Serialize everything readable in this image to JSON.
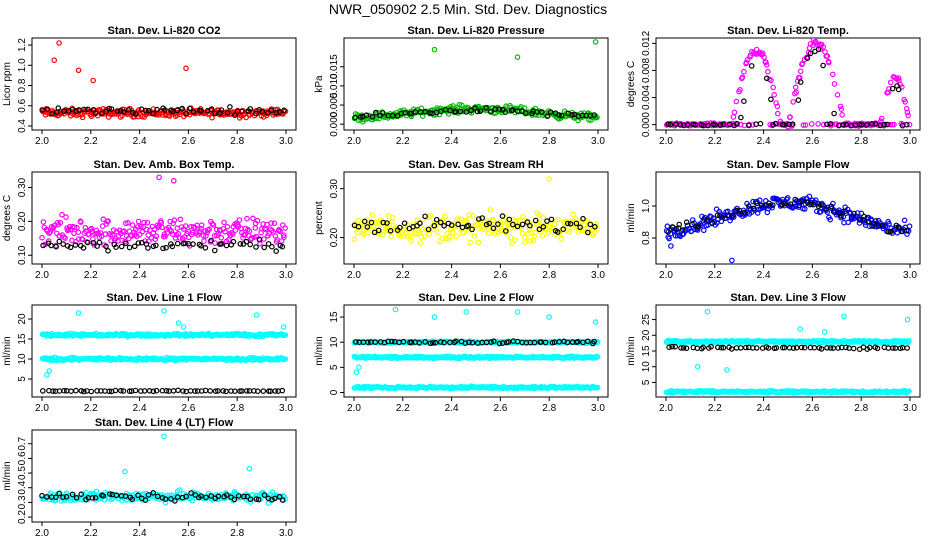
{
  "title": "NWR_050902  2.5 Min. Std. Dev. Diagnostics",
  "colors": {
    "co2": "#ff0000",
    "pressure": "#00bb00",
    "temp": "#ff00ff",
    "rh": "#ffff00",
    "sample": "#0000ff",
    "line": "#00ffff",
    "average": "#000000"
  },
  "chart_data": [
    {
      "id": "co2",
      "type": "scatter",
      "title": "Stan. Dev. Li-820 CO2",
      "ylabel": "Licor ppm",
      "xlim": [
        2.0,
        3.0
      ],
      "xticks": [
        "2.0",
        "2.2",
        "2.4",
        "2.6",
        "2.8",
        "3.0"
      ],
      "ylim": [
        0.38,
        1.25
      ],
      "yticks": [
        "0.4",
        "0.6",
        "0.8",
        "1.0",
        "1.2"
      ],
      "color": "co2",
      "series": [
        {
          "name": "samples",
          "color": "co2",
          "levels": [
            0.53
          ],
          "spread": 0.06,
          "outliers": [
            [
              2.07,
              1.22
            ],
            [
              2.05,
              1.05
            ],
            [
              2.15,
              0.95
            ],
            [
              2.59,
              0.97
            ],
            [
              2.21,
              0.85
            ]
          ]
        },
        {
          "name": "averages",
          "color": "average",
          "levels": [
            0.55
          ],
          "spread": 0.05,
          "outliers": []
        }
      ]
    },
    {
      "id": "pressure",
      "type": "scatter",
      "title": "Stan. Dev. Li-820 Pressure",
      "ylabel": "kPa",
      "xlim": [
        2.0,
        3.0
      ],
      "xticks": [
        "2.0",
        "2.2",
        "2.4",
        "2.6",
        "2.8",
        "3.0"
      ],
      "ylim": [
        -0.001,
        0.022
      ],
      "yticks": [
        "0.000",
        "0.005",
        "0.010",
        "0.015"
      ],
      "color": "pressure",
      "series": [
        {
          "name": "samples",
          "color": "pressure",
          "levels": [
            0.0025
          ],
          "spread": 0.0015,
          "wave": 0.0015,
          "outliers": [
            [
              2.33,
              0.0195
            ],
            [
              2.67,
              0.0175
            ],
            [
              2.99,
              0.0215
            ]
          ]
        },
        {
          "name": "averages",
          "color": "average",
          "levels": [
            0.0025
          ],
          "spread": 0.001,
          "wave": 0.0012,
          "outliers": []
        }
      ]
    },
    {
      "id": "licor-temp",
      "type": "scatter",
      "title": "Stan. Dev. Li-820 Temp.",
      "ylabel": "degrees C",
      "xlim": [
        2.0,
        3.0
      ],
      "xticks": [
        "2.0",
        "2.2",
        "2.4",
        "2.6",
        "2.8",
        "3.0"
      ],
      "ylim": [
        -0.0005,
        0.0125
      ],
      "yticks": [
        "0.000",
        "0.004",
        "0.008",
        "0.012"
      ],
      "color": "temp",
      "series": [
        {
          "name": "samples",
          "color": "temp",
          "levels": [
            0.0
          ],
          "spread": 0.0003,
          "arches": [
            [
              2.27,
              2.47,
              0.011
            ],
            [
              2.5,
              2.73,
              0.012
            ],
            [
              2.88,
              3.0,
              0.007
            ]
          ],
          "outliers": []
        },
        {
          "name": "averages",
          "color": "average",
          "levels": [
            0.0
          ],
          "spread": 0.0002,
          "arches": [
            [
              2.3,
              2.45,
              0.01
            ],
            [
              2.52,
              2.7,
              0.011
            ],
            [
              2.9,
              2.98,
              0.006
            ]
          ],
          "outliers": []
        }
      ]
    },
    {
      "id": "amb-box-temp",
      "type": "scatter",
      "title": "Stan. Dev. Amb. Box Temp.",
      "ylabel": "degrees C",
      "xlim": [
        2.0,
        3.0
      ],
      "xticks": [
        "2.0",
        "2.2",
        "2.4",
        "2.6",
        "2.8",
        "3.0"
      ],
      "ylim": [
        0.08,
        0.34
      ],
      "yticks": [
        "0.10",
        "0.20",
        "0.30"
      ],
      "color": "temp",
      "series": [
        {
          "name": "samples",
          "color": "temp",
          "levels": [
            0.17
          ],
          "spread": 0.06,
          "outliers": [
            [
              2.48,
              0.33
            ],
            [
              2.54,
              0.32
            ]
          ]
        },
        {
          "name": "averages",
          "color": "average",
          "levels": [
            0.13
          ],
          "spread": 0.02,
          "outliers": []
        }
      ]
    },
    {
      "id": "gas-rh",
      "type": "scatter",
      "title": "Stan. Dev. Gas Stream RH",
      "ylabel": "percent",
      "xlim": [
        2.0,
        3.0
      ],
      "xticks": [
        "2.0",
        "2.2",
        "2.4",
        "2.6",
        "2.8",
        "3.0"
      ],
      "ylim": [
        0.15,
        0.33
      ],
      "yticks": [
        "0.20",
        "0.30"
      ],
      "color": "rh",
      "series": [
        {
          "name": "samples",
          "color": "rh",
          "levels": [
            0.22
          ],
          "spread": 0.04,
          "outliers": [
            [
              2.8,
              0.32
            ]
          ]
        },
        {
          "name": "averages",
          "color": "average",
          "levels": [
            0.225
          ],
          "spread": 0.025,
          "outliers": []
        }
      ]
    },
    {
      "id": "sample-flow",
      "type": "scatter",
      "title": "Stan. Dev. Sample Flow",
      "ylabel": "ml/min",
      "xlim": [
        2.0,
        3.0
      ],
      "xticks": [
        "2.0",
        "2.2",
        "2.4",
        "2.6",
        "2.8",
        "3.0"
      ],
      "ylim": [
        0.65,
        1.2
      ],
      "yticks": [
        "0.8",
        "1.0"
      ],
      "color": "sample",
      "series": [
        {
          "name": "samples",
          "color": "sample",
          "levels": [
            0.9
          ],
          "spread": 0.07,
          "wave": 0.12,
          "outliers": [
            [
              2.02,
              0.75
            ],
            [
              2.27,
              0.66
            ]
          ]
        },
        {
          "name": "averages",
          "color": "average",
          "levels": [
            0.9
          ],
          "spread": 0.05,
          "wave": 0.12,
          "outliers": []
        }
      ]
    },
    {
      "id": "line1",
      "type": "scatter",
      "title": "Stan. Dev. Line 1 Flow",
      "ylabel": "ml/min",
      "xlim": [
        2.0,
        3.0
      ],
      "xticks": [
        "2.0",
        "2.2",
        "2.4",
        "2.6",
        "2.8",
        "3.0"
      ],
      "ylim": [
        1,
        23
      ],
      "yticks": [
        "5",
        "10",
        "15",
        "20"
      ],
      "color": "line",
      "series": [
        {
          "name": "samples",
          "color": "line",
          "levels": [
            16,
            10
          ],
          "spread": 0.5,
          "outliers": [
            [
              2.02,
              6
            ],
            [
              2.03,
              7
            ],
            [
              2.15,
              21.5
            ],
            [
              2.5,
              22
            ],
            [
              2.56,
              19
            ],
            [
              2.58,
              18
            ],
            [
              2.88,
              21
            ],
            [
              2.99,
              18
            ]
          ]
        },
        {
          "name": "averages",
          "color": "average",
          "levels": [
            2
          ],
          "spread": 0.2,
          "outliers": []
        }
      ]
    },
    {
      "id": "line2",
      "type": "scatter",
      "title": "Stan. Dev. Line 2 Flow",
      "ylabel": "ml/min",
      "xlim": [
        2.0,
        3.0
      ],
      "xticks": [
        "2.0",
        "2.2",
        "2.4",
        "2.6",
        "2.8",
        "3.0"
      ],
      "ylim": [
        -0.5,
        17
      ],
      "yticks": [
        "0",
        "5",
        "10",
        "15"
      ],
      "color": "line",
      "series": [
        {
          "name": "samples",
          "color": "line",
          "levels": [
            10,
            7,
            1
          ],
          "spread": 0.3,
          "outliers": [
            [
              2.01,
              4
            ],
            [
              2.02,
              5
            ],
            [
              2.17,
              16.5
            ],
            [
              2.33,
              15
            ],
            [
              2.46,
              16
            ],
            [
              2.67,
              16
            ],
            [
              2.8,
              15
            ],
            [
              2.99,
              14
            ]
          ]
        },
        {
          "name": "averages",
          "color": "average",
          "levels": [
            10
          ],
          "spread": 0.3,
          "outliers": []
        }
      ]
    },
    {
      "id": "line3",
      "type": "scatter",
      "title": "Stan. Dev. Line 3 Flow",
      "ylabel": "ml/min",
      "xlim": [
        2.0,
        3.0
      ],
      "xticks": [
        "2.0",
        "2.2",
        "2.4",
        "2.6",
        "2.8",
        "3.0"
      ],
      "ylim": [
        1,
        29
      ],
      "yticks": [
        "5",
        "10",
        "15",
        "20",
        "25"
      ],
      "color": "line",
      "series": [
        {
          "name": "samples",
          "color": "line",
          "levels": [
            18,
            2
          ],
          "spread": 0.5,
          "outliers": [
            [
              2.13,
              10
            ],
            [
              2.17,
              27.5
            ],
            [
              2.25,
              9
            ],
            [
              2.55,
              22
            ],
            [
              2.65,
              21
            ],
            [
              2.73,
              26
            ],
            [
              2.99,
              25
            ]
          ]
        },
        {
          "name": "averages",
          "color": "average",
          "levels": [
            16
          ],
          "spread": 0.5,
          "outliers": []
        }
      ]
    },
    {
      "id": "line4",
      "type": "scatter",
      "title": "Stan. Dev. Line 4 (LT) Flow",
      "ylabel": "ml/min",
      "xlim": [
        2.0,
        3.0
      ],
      "xticks": [
        "2.0",
        "2.2",
        "2.4",
        "2.6",
        "2.8",
        "3.0"
      ],
      "ylim": [
        0.18,
        0.78
      ],
      "yticks": [
        "0.2",
        "0.3",
        "0.4",
        "0.5",
        "0.6",
        "0.7"
      ],
      "color": "line",
      "series": [
        {
          "name": "samples",
          "color": "line",
          "levels": [
            0.34
          ],
          "spread": 0.05,
          "outliers": [
            [
              2.5,
              0.75
            ],
            [
              2.85,
              0.53
            ],
            [
              2.34,
              0.51
            ]
          ]
        },
        {
          "name": "averages",
          "color": "average",
          "levels": [
            0.34
          ],
          "spread": 0.04,
          "outliers": []
        }
      ]
    }
  ]
}
